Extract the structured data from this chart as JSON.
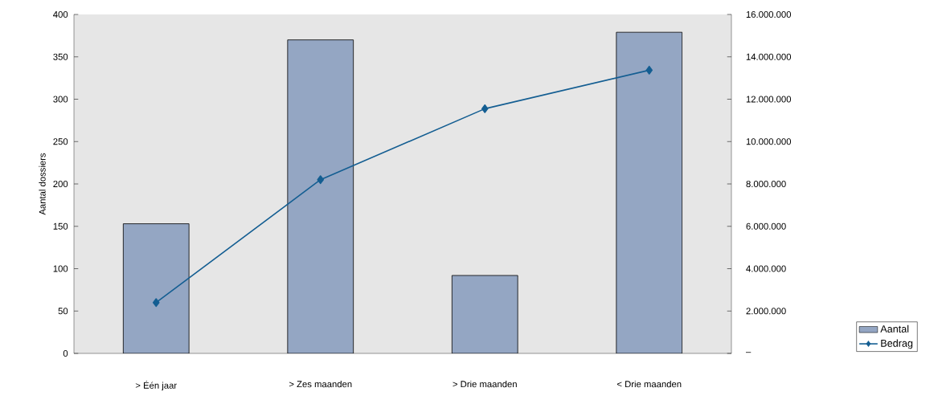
{
  "chart_data": {
    "type": "bar",
    "categories": [
      "> Één jaar",
      "> Zes maanden",
      "> Drie maanden",
      "< Drie maanden"
    ],
    "ylabel": "Aantal dossiers",
    "ylim": [
      0,
      400
    ],
    "yticks": [
      0,
      50,
      100,
      150,
      200,
      250,
      300,
      350,
      400
    ],
    "y2lim": [
      0,
      16000000
    ],
    "y2ticks": [
      {
        "value": 0,
        "label": "–"
      },
      {
        "value": 2000000,
        "label": "2.000.000"
      },
      {
        "value": 4000000,
        "label": "4.000.000"
      },
      {
        "value": 6000000,
        "label": "6.000.000"
      },
      {
        "value": 8000000,
        "label": "8.000.000"
      },
      {
        "value": 10000000,
        "label": "10.000.000"
      },
      {
        "value": 12000000,
        "label": "12.000.000"
      },
      {
        "value": 14000000,
        "label": "14.000.000"
      },
      {
        "value": 16000000,
        "label": "16.000.000"
      }
    ],
    "legend": "right",
    "marker": "diamond",
    "series": [
      {
        "name": "Aantal",
        "color": "#94a6c3",
        "values": [
          153,
          370,
          92,
          379
        ]
      },
      {
        "name": "Bedrag",
        "type": "line",
        "axis": "y2",
        "color": "#145e92",
        "values": [
          2400000,
          8200000,
          11550000,
          13370000
        ]
      }
    ]
  }
}
